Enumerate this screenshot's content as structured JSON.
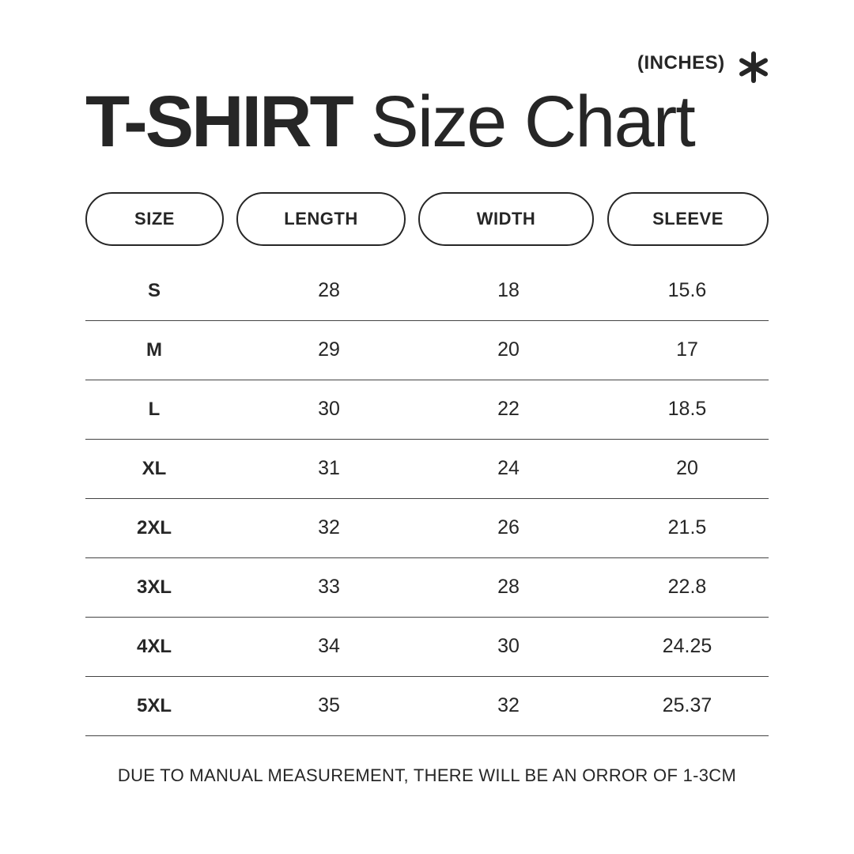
{
  "units": "(INCHES)",
  "icon": "asterisk-icon",
  "title": {
    "bold": "T-SHIRT",
    "regular": "Size Chart"
  },
  "columns": [
    "SIZE",
    "LENGTH",
    "WIDTH",
    "SLEEVE"
  ],
  "rows": [
    [
      "S",
      "28",
      "18",
      "15.6"
    ],
    [
      "M",
      "29",
      "20",
      "17"
    ],
    [
      "L",
      "30",
      "22",
      "18.5"
    ],
    [
      "XL",
      "31",
      "24",
      "20"
    ],
    [
      "2XL",
      "32",
      "26",
      "21.5"
    ],
    [
      "3XL",
      "33",
      "28",
      "22.8"
    ],
    [
      "4XL",
      "34",
      "30",
      "24.25"
    ],
    [
      "5XL",
      "35",
      "32",
      "25.37"
    ]
  ],
  "footer": "DUE TO MANUAL MEASUREMENT, THERE WILL BE AN ORROR OF 1-3CM",
  "colors": {
    "text": "#262626",
    "background": "#ffffff"
  }
}
